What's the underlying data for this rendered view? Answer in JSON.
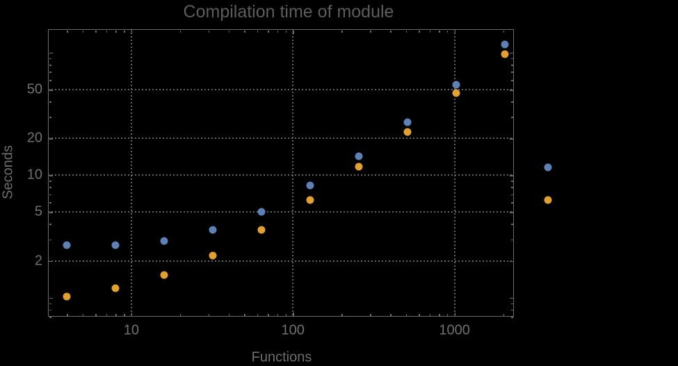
{
  "chart_data": {
    "type": "scatter",
    "title": "Compilation time of module",
    "xlabel": "Functions",
    "ylabel": "Seconds",
    "x_scale": "log",
    "y_scale": "log",
    "x_range": [
      3.05,
      2330
    ],
    "y_range": [
      0.7,
      155.7
    ],
    "x_tick_values": [
      10,
      100,
      1000
    ],
    "x_tick_labels": [
      "10",
      "100",
      "1000"
    ],
    "y_tick_values": [
      2,
      5,
      10,
      20,
      50
    ],
    "y_tick_labels": [
      "2",
      "5",
      "10",
      "20",
      "50"
    ],
    "x_major_ticks": [
      10,
      100,
      1000
    ],
    "y_major_ticks": [
      1,
      2,
      5,
      10,
      20,
      50,
      100
    ],
    "grid": {
      "style": "dotted",
      "color": "#646464",
      "x_at": [
        10,
        100,
        1000
      ],
      "y_at": [
        2,
        5,
        10,
        20,
        50
      ]
    },
    "x": [
      4,
      8,
      16,
      32,
      64,
      128,
      256,
      512,
      1024,
      2048
    ],
    "series": [
      {
        "name": "series-1-blue",
        "color": "#5E81B5",
        "values": [
          2.7,
          2.7,
          2.9,
          3.6,
          5.0,
          8.3,
          14.3,
          27.2,
          54.6,
          117
        ]
      },
      {
        "name": "series-2-orange",
        "color": "#E2A030",
        "values": [
          1.02,
          1.19,
          1.53,
          2.2,
          3.6,
          6.3,
          11.8,
          22.5,
          46.6,
          97
        ]
      }
    ],
    "legend": {
      "position": "outside-right",
      "entries": [
        {
          "marker_color": "#5E81B5",
          "label": ""
        },
        {
          "marker_color": "#E2A030",
          "label": ""
        }
      ]
    }
  },
  "colors": {
    "background": "#000000",
    "frame": "#6b6b6b",
    "grid": "#646464",
    "title_text": "#5c5c5c",
    "tick_text": "#717171",
    "series1": "#5E81B5",
    "series2": "#E2A030"
  }
}
